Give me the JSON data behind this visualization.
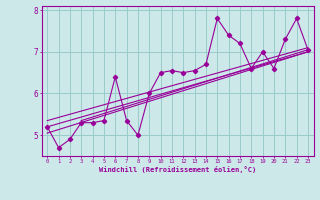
{
  "xlabel": "Windchill (Refroidissement éolien,°C)",
  "background_color": "#cce8e8",
  "line_color": "#990099",
  "grid_color": "#99cccc",
  "x_data": [
    0,
    1,
    2,
    3,
    4,
    5,
    6,
    7,
    8,
    9,
    10,
    11,
    12,
    13,
    14,
    15,
    16,
    17,
    18,
    19,
    20,
    21,
    22,
    23
  ],
  "y_data": [
    5.2,
    4.7,
    4.9,
    5.3,
    5.3,
    5.35,
    6.4,
    5.35,
    5.0,
    6.0,
    6.5,
    6.55,
    6.5,
    6.55,
    6.7,
    7.8,
    7.4,
    7.2,
    6.6,
    7.0,
    6.6,
    7.3,
    7.8,
    7.05
  ],
  "xlim": [
    -0.5,
    23.5
  ],
  "ylim": [
    4.5,
    8.1
  ],
  "yticks": [
    5,
    6,
    7,
    8
  ],
  "xticks": [
    0,
    1,
    2,
    3,
    4,
    5,
    6,
    7,
    8,
    9,
    10,
    11,
    12,
    13,
    14,
    15,
    16,
    17,
    18,
    19,
    20,
    21,
    22,
    23
  ],
  "regression_lines": [
    {
      "x0": 0,
      "y0": 5.05,
      "x1": 23,
      "y1": 7.0
    },
    {
      "x0": 0,
      "y0": 5.2,
      "x1": 23,
      "y1": 7.0
    },
    {
      "x0": 0,
      "y0": 5.35,
      "x1": 23,
      "y1": 7.1
    },
    {
      "x0": 3,
      "y0": 5.35,
      "x1": 23,
      "y1": 7.05
    }
  ]
}
